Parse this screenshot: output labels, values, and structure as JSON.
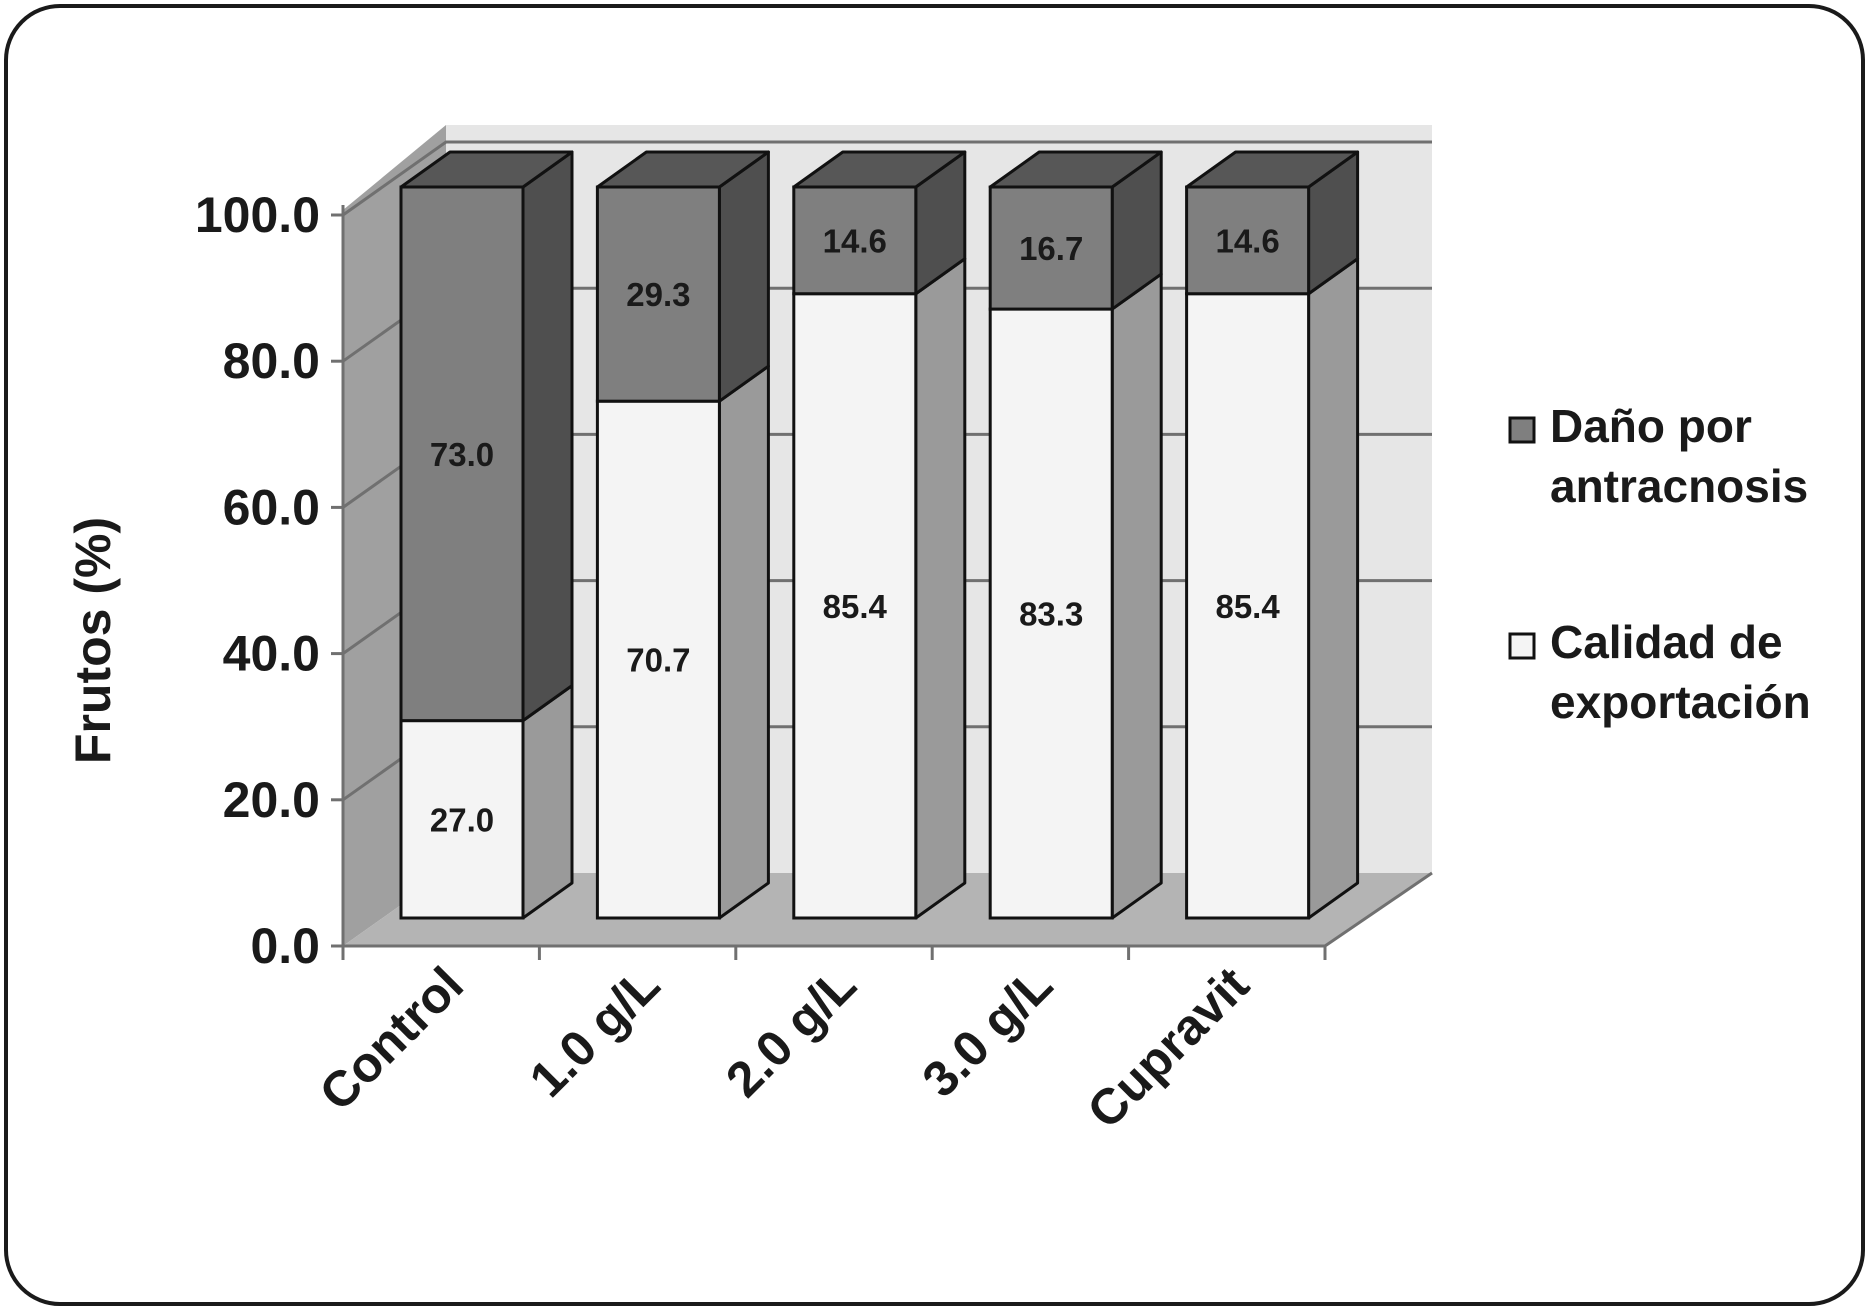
{
  "chart_data": {
    "type": "bar",
    "stacked": true,
    "three_d": true,
    "categories": [
      "Control",
      "1.0 g/L",
      "2.0 g/L",
      "3.0 g/L",
      "Cupravit"
    ],
    "series": [
      {
        "name": "Calidad de exportación",
        "values": [
          27.0,
          70.7,
          85.4,
          83.3,
          85.4
        ],
        "color": "#f4f4f4",
        "side": "#9a9a9a",
        "top": "#e8e8e8"
      },
      {
        "name": "Daño por antracnosis",
        "values": [
          73.0,
          29.3,
          14.6,
          16.7,
          14.6
        ],
        "color": "#7f7f7f",
        "side": "#4f4f4f",
        "top": "#575757"
      }
    ],
    "data_labels": [
      [
        "27.0",
        "70.7",
        "85.4",
        "83.3",
        "85.4"
      ],
      [
        "73.0",
        "29.3",
        "14.6",
        "16.7",
        "14.6"
      ]
    ],
    "ylabel": "Frutos (%)",
    "xlabel": "",
    "ylim": [
      0,
      100
    ],
    "yticks": [
      "0.0",
      "20.0",
      "40.0",
      "60.0",
      "80.0",
      "100.0"
    ],
    "grid": true,
    "legend": {
      "placement": "right",
      "entries": [
        {
          "series": 1,
          "lines": [
            "Daño por",
            "antracnosis"
          ]
        },
        {
          "series": 0,
          "lines": [
            "Calidad de",
            "exportación"
          ]
        }
      ]
    }
  }
}
